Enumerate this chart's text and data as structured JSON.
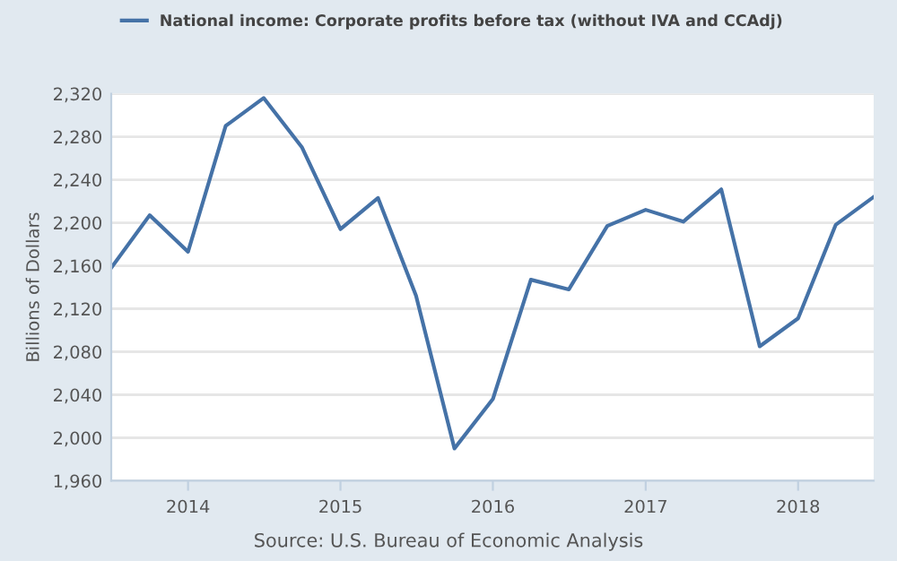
{
  "chart_data": {
    "type": "line",
    "ylabel": "Billions of Dollars",
    "annotations": [
      "Source: U.S. Bureau of Economic Analysis"
    ],
    "x": [
      "2013-07-01",
      "2013-10-01",
      "2014-01-01",
      "2014-04-01",
      "2014-07-01",
      "2014-10-01",
      "2015-01-01",
      "2015-04-01",
      "2015-07-01",
      "2015-10-01",
      "2016-01-01",
      "2016-04-01",
      "2016-07-01",
      "2016-10-01",
      "2017-01-01",
      "2017-04-01",
      "2017-07-01",
      "2017-10-01",
      "2018-01-01",
      "2018-04-01",
      "2018-07-01"
    ],
    "series": [
      {
        "name": "National income: Corporate profits before tax (without IVA and CCAdj)",
        "color": "#4572a7",
        "values": [
          2158,
          2207,
          2173,
          2290,
          2316,
          2270,
          2194,
          2223,
          2132,
          1990,
          2036,
          2147,
          2138,
          2197,
          2212,
          2201,
          2231,
          2085,
          2111,
          2198,
          2224
        ]
      }
    ],
    "xlim": [
      "2013-07-01",
      "2018-07-01"
    ],
    "xticks": [
      {
        "value": "2014-01-01",
        "label": "2014"
      },
      {
        "value": "2015-01-01",
        "label": "2015"
      },
      {
        "value": "2016-01-01",
        "label": "2016"
      },
      {
        "value": "2017-01-01",
        "label": "2017"
      },
      {
        "value": "2018-01-01",
        "label": "2018"
      }
    ],
    "ylim": [
      1960,
      2320
    ],
    "yticks": [
      {
        "value": 1960,
        "label": "1,960"
      },
      {
        "value": 2000,
        "label": "2,000"
      },
      {
        "value": 2040,
        "label": "2,040"
      },
      {
        "value": 2080,
        "label": "2,080"
      },
      {
        "value": 2120,
        "label": "2,120"
      },
      {
        "value": 2160,
        "label": "2,160"
      },
      {
        "value": 2200,
        "label": "2,200"
      },
      {
        "value": 2240,
        "label": "2,240"
      },
      {
        "value": 2280,
        "label": "2,280"
      },
      {
        "value": 2320,
        "label": "2,320"
      }
    ],
    "grid": "y",
    "legend": "top left",
    "marker": "none",
    "line_style": "solid"
  }
}
